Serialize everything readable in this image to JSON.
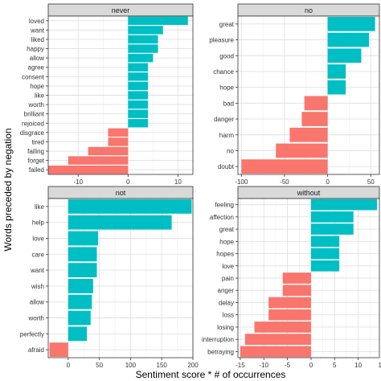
{
  "chart_data": {
    "type": "bar",
    "orientation": "horizontal",
    "xlabel": "Sentiment score * # of occurrences",
    "ylabel": "Words preceded by negation",
    "grid": true,
    "colors": {
      "negative": "#F8766D",
      "positive": "#00BFC4"
    },
    "panels": [
      {
        "facet": "never",
        "xlim": [
          -16,
          13
        ],
        "xticks": [
          -10,
          0,
          10
        ],
        "words": [
          "loved",
          "want",
          "liked",
          "happy",
          "allow",
          "agree",
          "consent",
          "hope",
          "like",
          "worth",
          "brilliant",
          "rejoiced",
          "disgrace",
          "tired",
          "failing",
          "forget",
          "failed"
        ],
        "values": [
          12,
          7,
          6,
          6,
          5,
          4,
          4,
          4,
          4,
          4,
          4,
          4,
          -4,
          -4,
          -8,
          -12,
          -16
        ]
      },
      {
        "facet": "no",
        "xlim": [
          -104,
          60
        ],
        "xticks": [
          -100,
          -50,
          0,
          50
        ],
        "words": [
          "great",
          "pleasure",
          "good",
          "chance",
          "hope",
          "bad",
          "danger",
          "harm",
          "no",
          "doubt"
        ],
        "values": [
          55,
          48,
          39,
          21,
          21,
          -27,
          -30,
          -44,
          -60,
          -100
        ]
      },
      {
        "facet": "not",
        "xlim": [
          -32,
          200
        ],
        "xticks": [
          0,
          50,
          100,
          150,
          200
        ],
        "words": [
          "like",
          "help",
          "love",
          "care",
          "want",
          "wish",
          "allow",
          "worth",
          "perfectly",
          "afraid"
        ],
        "values": [
          198,
          166,
          48,
          46,
          46,
          40,
          38,
          36,
          30,
          -30
        ]
      },
      {
        "facet": "without",
        "xlim": [
          -15.5,
          14.5
        ],
        "xticks": [
          -15,
          -10,
          -5,
          0,
          5,
          10,
          15
        ],
        "words": [
          "feeling",
          "affection",
          "great",
          "hope",
          "hopes",
          "love",
          "pain",
          "anger",
          "delay",
          "loss",
          "losing",
          "interruption",
          "betraying"
        ],
        "values": [
          14,
          9,
          9,
          6,
          6,
          6,
          -6,
          -6,
          -9,
          -9,
          -12,
          -14,
          -15
        ]
      }
    ]
  }
}
